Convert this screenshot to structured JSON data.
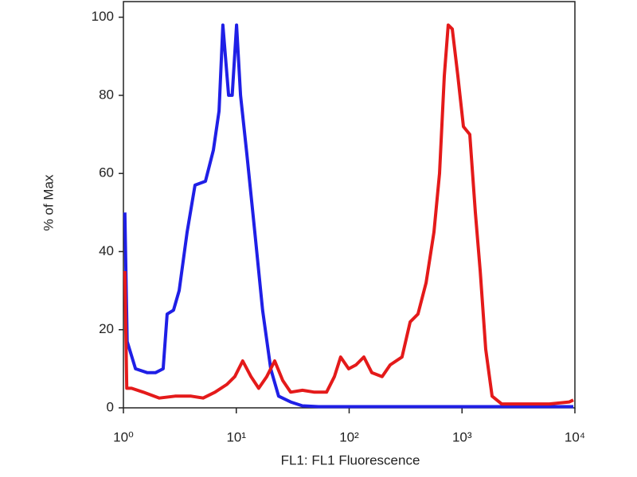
{
  "chart_data": {
    "type": "line",
    "xlabel": "FL1: FL1 Fluorescence",
    "ylabel": "% of Max",
    "xscale": "log",
    "xlim": [
      1,
      10000
    ],
    "ylim": [
      0,
      104
    ],
    "xticks": [
      {
        "value": 1,
        "label": "10⁰"
      },
      {
        "value": 10,
        "label": "10¹"
      },
      {
        "value": 100,
        "label": "10²"
      },
      {
        "value": 1000,
        "label": "10³"
      },
      {
        "value": 10000,
        "label": "10⁴"
      }
    ],
    "yticks": [
      0,
      20,
      40,
      60,
      80,
      100
    ],
    "grid": false,
    "series": [
      {
        "color": "#1f1fe6",
        "x": [
          1.03,
          1.08,
          1.28,
          1.63,
          1.92,
          2.25,
          2.44,
          2.78,
          3.12,
          3.67,
          4.31,
          5.33,
          6.27,
          7.03,
          7.6,
          8.55,
          9.2,
          10.05,
          10.9,
          12.4,
          14.6,
          17.1,
          20.2,
          23.7,
          30.3,
          38.6,
          53.5,
          272,
          1377,
          9680
        ],
        "values": [
          50,
          17,
          10,
          9,
          9,
          10,
          24,
          25,
          30,
          45,
          57,
          58,
          66,
          76,
          98,
          80,
          80,
          98,
          80,
          65,
          45,
          25,
          10,
          3,
          1.5,
          0.5,
          0.3,
          0.3,
          0.3,
          0.3
        ]
      },
      {
        "color": "#e41a1a",
        "x": [
          1.03,
          1.07,
          1.18,
          1.5,
          2.08,
          2.87,
          3.98,
          5.08,
          6.48,
          8.26,
          9.7,
          11.4,
          13.5,
          15.8,
          18.6,
          21.9,
          25.8,
          30.3,
          38.6,
          49.3,
          63,
          74,
          84,
          99,
          115,
          135,
          159,
          196,
          231,
          294,
          347,
          407,
          480,
          564,
          632,
          697,
          755,
          820,
          918,
          1028,
          1172,
          1313,
          1449,
          1622,
          1846,
          2244,
          3656,
          5943,
          8930,
          9680
        ],
        "values": [
          35,
          5,
          5,
          4,
          2.5,
          3,
          3,
          2.5,
          4,
          6,
          8,
          12,
          8,
          5,
          8,
          12,
          7,
          4,
          4.5,
          4,
          4,
          8,
          13,
          10,
          11,
          13,
          9,
          8,
          11,
          13,
          22,
          24,
          32,
          45,
          60,
          85,
          98,
          97,
          85,
          72,
          70,
          50,
          35,
          15,
          3,
          1,
          1,
          1,
          1.5,
          2
        ]
      }
    ]
  }
}
